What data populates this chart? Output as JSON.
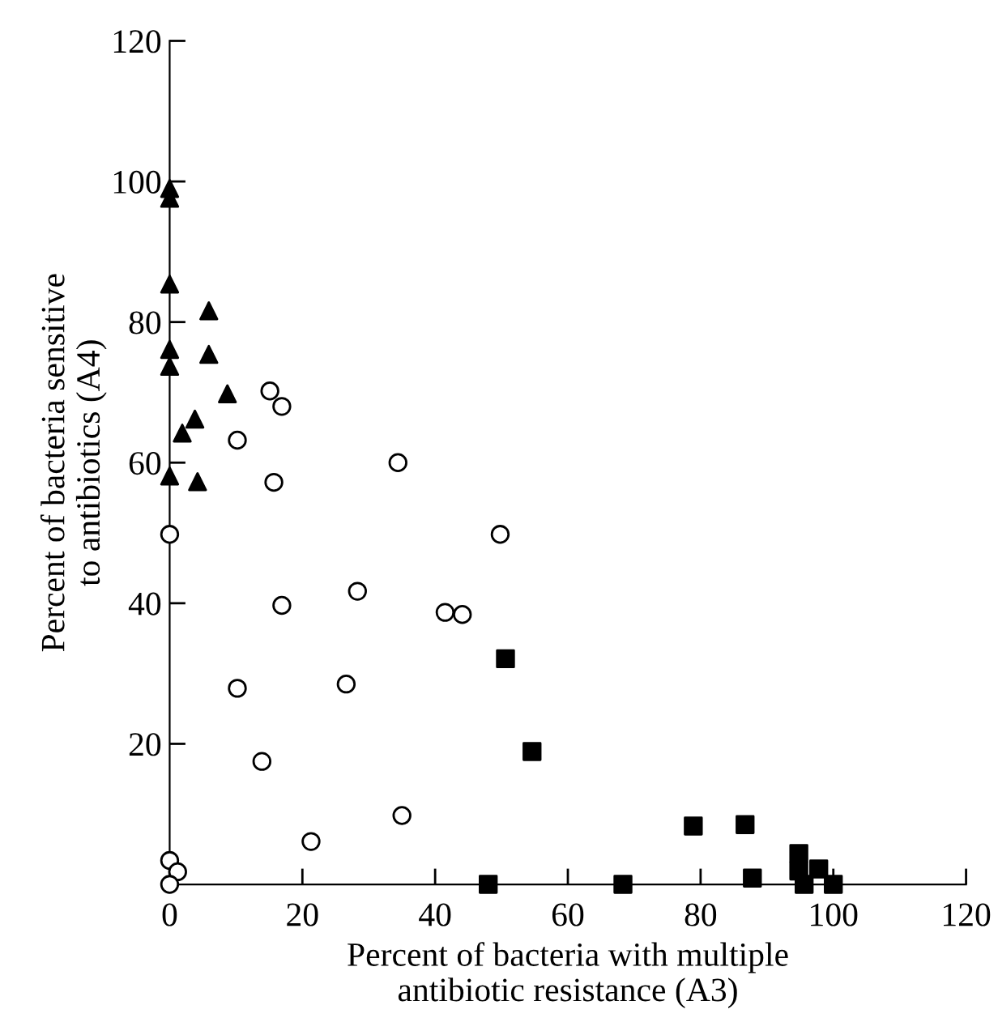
{
  "chart_data": {
    "type": "scatter",
    "xlabel": "Percent of bacteria with multiple\nantibiotic resistance (A3)",
    "ylabel": "Percent of bacteria sensitive\nto antibiotics (A4)",
    "xlim": [
      0,
      120
    ],
    "ylim": [
      0,
      120
    ],
    "xticks": [
      0,
      20,
      40,
      60,
      80,
      100,
      120
    ],
    "yticks": [
      20,
      40,
      60,
      80,
      100,
      120
    ],
    "grid": false,
    "series": [
      {
        "color": "#000000",
        "marker": "triangle",
        "x": [
          0,
          0,
          0,
          5.9,
          0,
          5.9,
          0,
          8.7,
          3.8,
          1.9,
          0,
          4.2
        ],
        "values": [
          99,
          97.6,
          85.4,
          81.6,
          76.1,
          75.4,
          73.7,
          69.8,
          66.2,
          64.2,
          58.1,
          57.3
        ]
      },
      {
        "color": "#ffffff",
        "marker": "circle",
        "x": [
          15.1,
          16.9,
          10.2,
          15.7,
          34.4,
          0,
          49.8,
          28.3,
          16.9,
          41.5,
          44.1,
          10.2,
          26.6,
          13.9,
          35,
          21.3,
          0,
          1.2,
          0
        ],
        "values": [
          70.2,
          68,
          63.2,
          57.2,
          60,
          49.8,
          49.8,
          41.7,
          39.7,
          38.7,
          38.4,
          27.9,
          28.5,
          17.5,
          9.8,
          6.1,
          3.4,
          1.8,
          0
        ]
      },
      {
        "color": "#000000",
        "marker": "square",
        "x": [
          48,
          50.6,
          54.6,
          68.3,
          78.9,
          86.7,
          87.8,
          94.8,
          94.8,
          97.8,
          95.6,
          100
        ],
        "values": [
          0,
          32.1,
          18.9,
          0,
          8.3,
          8.5,
          0.9,
          4.4,
          1.9,
          2.2,
          0,
          0
        ]
      }
    ]
  }
}
